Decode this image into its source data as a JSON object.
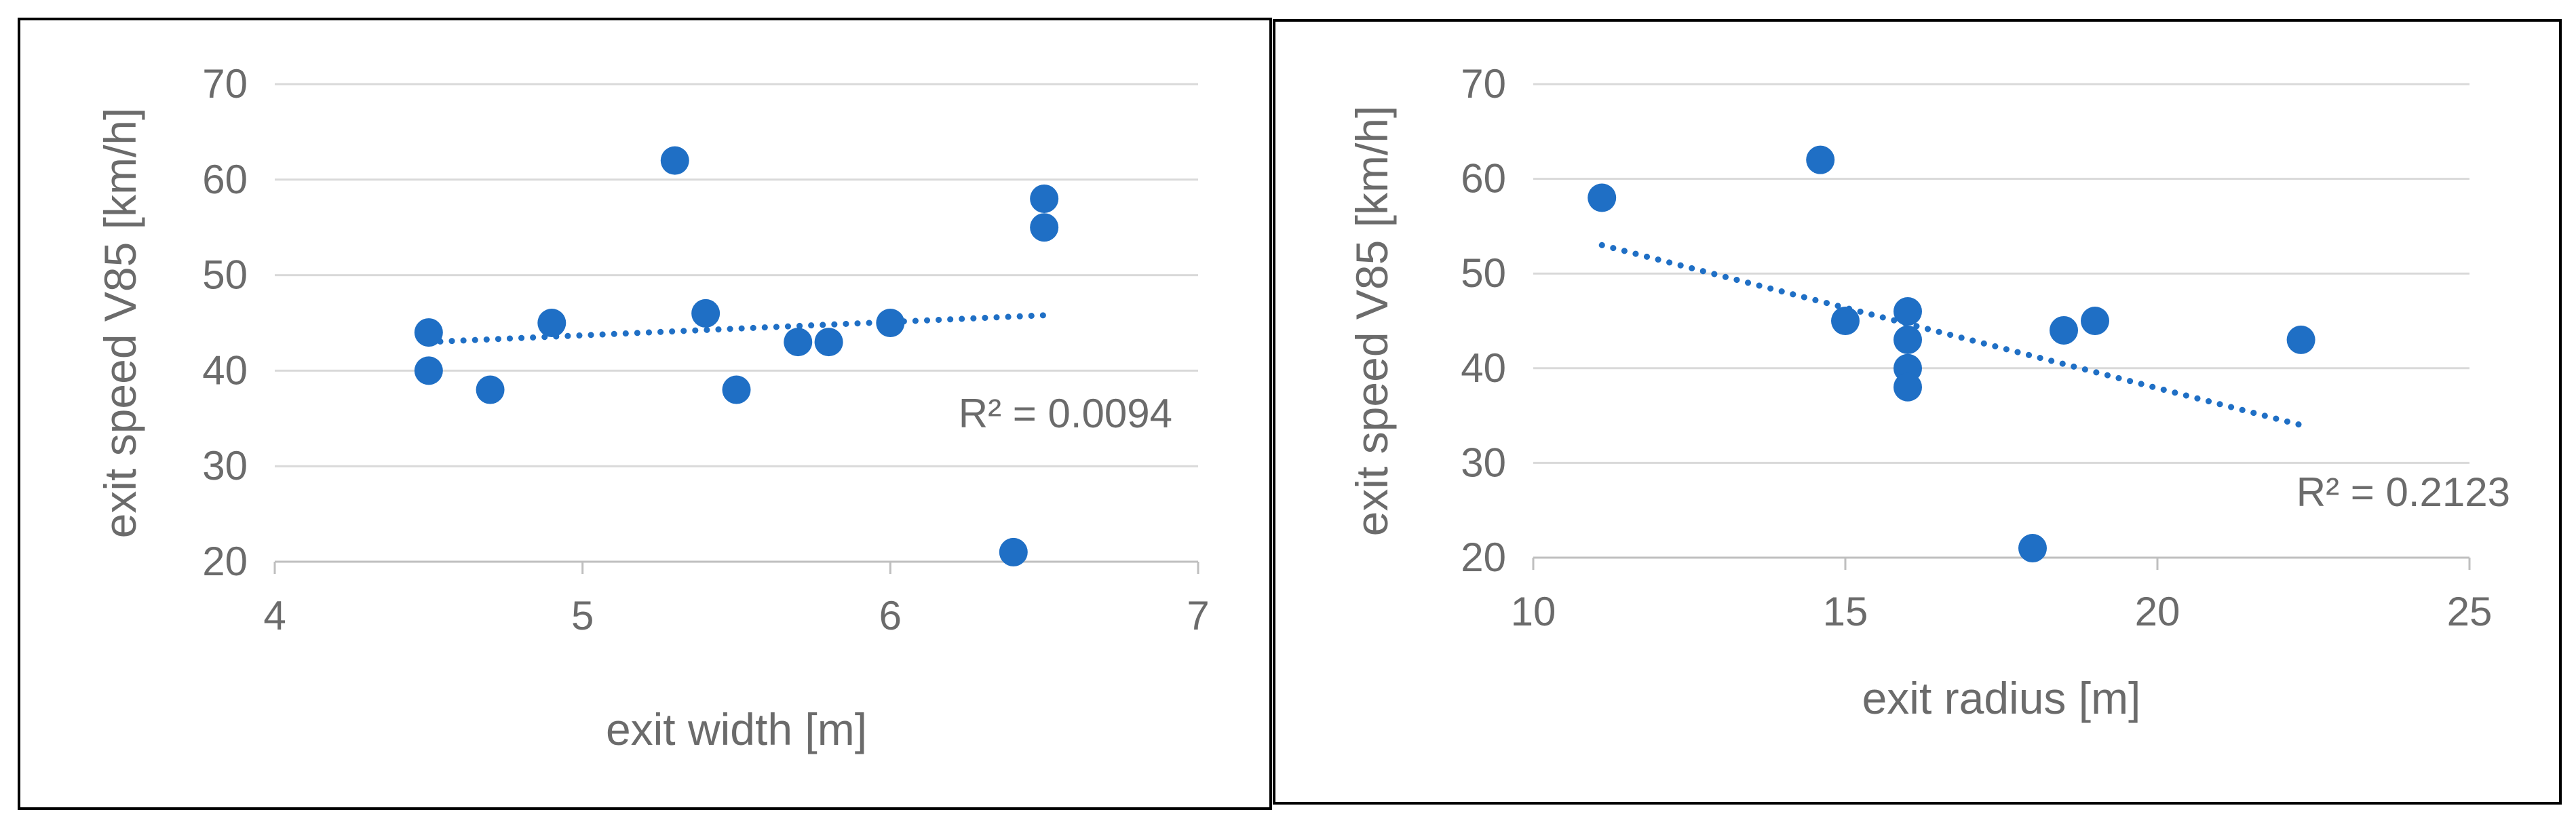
{
  "colors": {
    "marker": "#1f6fc5",
    "trend": "#1f6fc5",
    "grid": "#d9d9d9",
    "axis": "#bfbfbf",
    "text": "#6b6b6b"
  },
  "chart_data": [
    {
      "type": "scatter",
      "xlabel": "exit width [m]",
      "ylabel": "exit speed V85 [km/h]",
      "xlim": [
        4,
        7
      ],
      "ylim": [
        20,
        70
      ],
      "xticks": [
        "4",
        "5",
        "6",
        "7"
      ],
      "yticks": [
        "20",
        "30",
        "40",
        "50",
        "60",
        "70"
      ],
      "grid": true,
      "points": [
        {
          "x": 4.5,
          "y": 44
        },
        {
          "x": 4.5,
          "y": 40
        },
        {
          "x": 4.7,
          "y": 38
        },
        {
          "x": 4.9,
          "y": 45
        },
        {
          "x": 5.3,
          "y": 62
        },
        {
          "x": 5.4,
          "y": 46
        },
        {
          "x": 5.5,
          "y": 38
        },
        {
          "x": 5.7,
          "y": 43
        },
        {
          "x": 5.8,
          "y": 43
        },
        {
          "x": 6.0,
          "y": 45
        },
        {
          "x": 6.4,
          "y": 21
        },
        {
          "x": 6.5,
          "y": 58
        },
        {
          "x": 6.5,
          "y": 55
        }
      ],
      "trendline": {
        "x": [
          4.5,
          6.5
        ],
        "y": [
          43.0,
          45.8
        ]
      },
      "annotation": "R² = 0.0094"
    },
    {
      "type": "scatter",
      "xlabel": "exit radius [m]",
      "ylabel": "exit speed V85 [km/h]",
      "xlim": [
        10,
        25
      ],
      "ylim": [
        20,
        70
      ],
      "xticks": [
        "10",
        "15",
        "20",
        "25"
      ],
      "yticks": [
        "20",
        "30",
        "40",
        "50",
        "60",
        "70"
      ],
      "grid": true,
      "points": [
        {
          "x": 11.1,
          "y": 58
        },
        {
          "x": 14.6,
          "y": 62
        },
        {
          "x": 15.0,
          "y": 45
        },
        {
          "x": 16.0,
          "y": 46
        },
        {
          "x": 16.0,
          "y": 43
        },
        {
          "x": 16.0,
          "y": 40
        },
        {
          "x": 16.0,
          "y": 38
        },
        {
          "x": 18.0,
          "y": 21
        },
        {
          "x": 18.5,
          "y": 44
        },
        {
          "x": 19.0,
          "y": 45
        },
        {
          "x": 22.3,
          "y": 43
        }
      ],
      "trendline": {
        "x": [
          11.1,
          22.3
        ],
        "y": [
          53.0,
          34.0
        ]
      },
      "annotation": "R² = 0.2123"
    }
  ]
}
